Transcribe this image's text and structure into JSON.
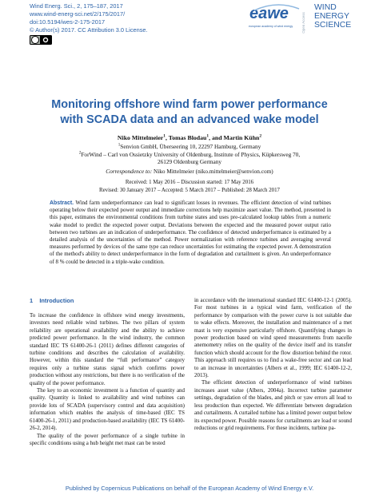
{
  "header": {
    "journal_lines": [
      "Wind Energ. Sci., 2, 175–187, 2017",
      "www.wind-energ-sci.net/2/175/2017/",
      "doi:10.5194/wes-2-175-2017",
      "© Author(s) 2017. CC Attribution 3.0 License."
    ],
    "logo": {
      "mark": "eawe",
      "tagline": "european academy of wind energy",
      "open_access": "Open Access",
      "journal_name": [
        "WIND",
        "ENERGY",
        "SCIENCE"
      ]
    }
  },
  "title": "Monitoring offshore wind farm power performance with SCADA data and an advanced wake model",
  "authors": [
    {
      "name": "Niko Mittelmeier",
      "sup": "1"
    },
    {
      "name": "Tomas Blodau",
      "sup": "1"
    },
    {
      "name": "Martin Kühn",
      "sup": "2"
    }
  ],
  "author_separators": [
    ", ",
    ", and "
  ],
  "affiliations": [
    {
      "sup": "1",
      "text": "Senvion GmbH, Überseering 10, 22297 Hamburg, Germany"
    },
    {
      "sup": "2",
      "text": "ForWind – Carl von Ossietzky University of Oldenburg, Institute of Physics, Küpkersweg 70, 26129 Oldenburg Germany"
    }
  ],
  "correspondence": {
    "label": "Correspondence to:",
    "text": "Niko Mittelmeier (niko.mittelmeier@senvion.com)"
  },
  "dates": [
    "Received: 1 May 2016 – Discussion started: 17 May 2016",
    "Revised: 30 January 2017 – Accepted: 5 March 2017 – Published: 28 March 2017"
  ],
  "abstract": {
    "label": "Abstract.",
    "text": "Wind farm underperformance can lead to significant losses in revenues. The efficient detection of wind turbines operating below their expected power output and immediate corrections help maximize asset value. The method, presented in this paper, estimates the environmental conditions from turbine states and uses pre-calculated lookup tables from a numeric wake model to predict the expected power output. Deviations between the expected and the measured power output ratio between two turbines are an indication of underperformance. The confidence of detected underperformance is estimated by a detailed analysis of the uncertainties of the method. Power normalization with reference turbines and averaging several measures performed by devices of the same type can reduce uncertainties for estimating the expected power. A demonstration of the method's ability to detect underperformance in the form of degradation and curtailment is given. An underperformance of 8 % could be detected in a triple-wake condition."
  },
  "section": {
    "number": "1",
    "title": "Introduction"
  },
  "left_column": [
    "To increase the confidence in offshore wind energy investments, investors need reliable wind turbines. The two pillars of system reliability are operational availability and the ability to achieve predicted power performance. In the wind industry, the common standard IEC TS 61400-26-1 (2011) defines different categories of turbine conditions and describes the calculation of availability. However, within this standard the “full performance” category requires only a turbine status signal which confirms power production without any restrictions, but there is no verification of the quality of the power performance.",
    "The key to an economic investment is a function of quantity and quality. Quantity is linked to availability and wind turbines can provide lots of SCADA (supervisory control and data acquisition) information which enables the analysis of time-based (IEC TS 61400-26-1, 2011) and production-based availability (IEC TS 61400-26-2, 2014).",
    "The quality of the power performance of a single turbine in specific conditions using a hub height met mast can be tested"
  ],
  "right_column": [
    "in accordance with the international standard IEC 61400-12-1 (2005). For most turbines in a typical wind farm, verification of the performance by comparison with the power curve is not suitable due to wake effects. Moreover, the installation and maintenance of a met mast is very expensive particularly offshore. Quantifying changes in power production based on wind speed measurements from nacelle anemometry relies on the quality of the device itself and its transfer function which should account for the flow distortion behind the rotor. This approach still requires us to find a wake-free sector and can lead to an increase in uncertainties (Albers et al., 1999; IEC 61400-12-2, 2013).",
    "The efficient detection of underperformance of wind turbines increases asset value (Albers, 2004a). Incorrect turbine parameter settings, degradation of the blades, and pitch or yaw errors all lead to less production than expected. We differentiate between degradation and curtailments. A curtailed turbine has a limited power output below its expected power. Possible reasons for curtailments are load or sound reductions or grid requirements. For these incidents, turbine pa-"
  ],
  "footer": "Published by Copernicus Publications on behalf of the European Academy of Wind Energy e.V."
}
